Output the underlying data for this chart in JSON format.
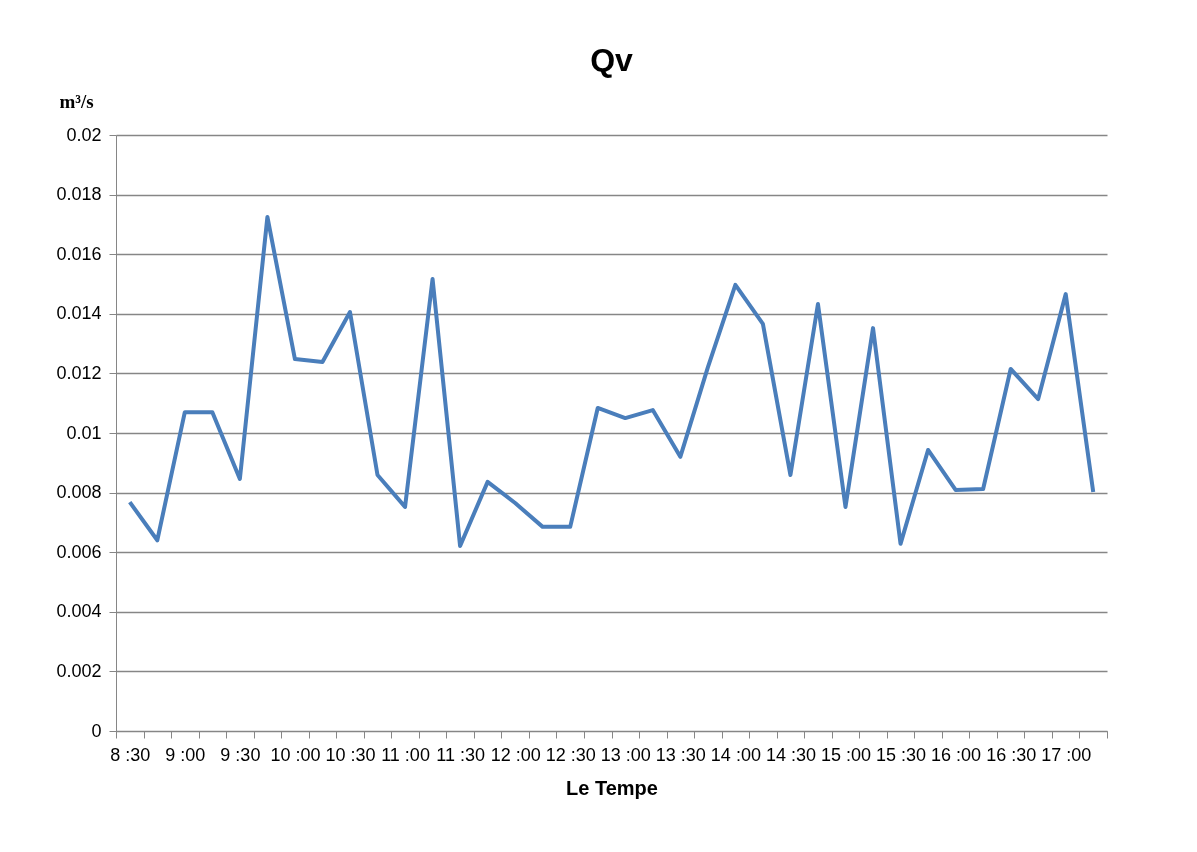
{
  "chart_data": {
    "type": "line",
    "title": "Qv",
    "xlabel": "Le Tempe",
    "ylabel": "m³/s",
    "categories": [
      "8 :30",
      null,
      "9 :00",
      null,
      "9 :30",
      null,
      "10 :00",
      null,
      "10 :30",
      null,
      "11 :00",
      null,
      "11 :30",
      null,
      "12 :00",
      null,
      "12 :30",
      null,
      "13 :00",
      null,
      "13 :30",
      null,
      "14 :00",
      null,
      "14 :30",
      null,
      "15 :00",
      null,
      "15 :30",
      null,
      "16 :00",
      null,
      "16 :30",
      null,
      "17 :00",
      null
    ],
    "series": [
      {
        "color": "#4a7ebb",
        "values": [
          0.00768,
          0.0064,
          0.0107,
          0.0107,
          0.00846,
          0.01725,
          0.01248,
          0.01238,
          0.01406,
          0.00859,
          0.00752,
          0.01517,
          0.00621,
          0.00836,
          0.00765,
          0.00685,
          0.00685,
          0.01084,
          0.0105,
          0.01077,
          0.0092,
          0.0122,
          0.01497,
          0.01366,
          0.00859,
          0.01433,
          0.00752,
          0.01352,
          0.00628,
          0.00943,
          0.00809,
          0.00812,
          0.01215,
          0.01114,
          0.01466,
          0.00802
        ]
      }
    ],
    "ylim": [
      0,
      0.02
    ],
    "yticks": [
      0,
      0.002,
      0.004,
      0.006,
      0.008,
      0.01,
      0.012,
      0.014,
      0.016,
      0.018,
      0.02
    ],
    "grid": "y",
    "marker": "none",
    "line_style": "solid"
  }
}
